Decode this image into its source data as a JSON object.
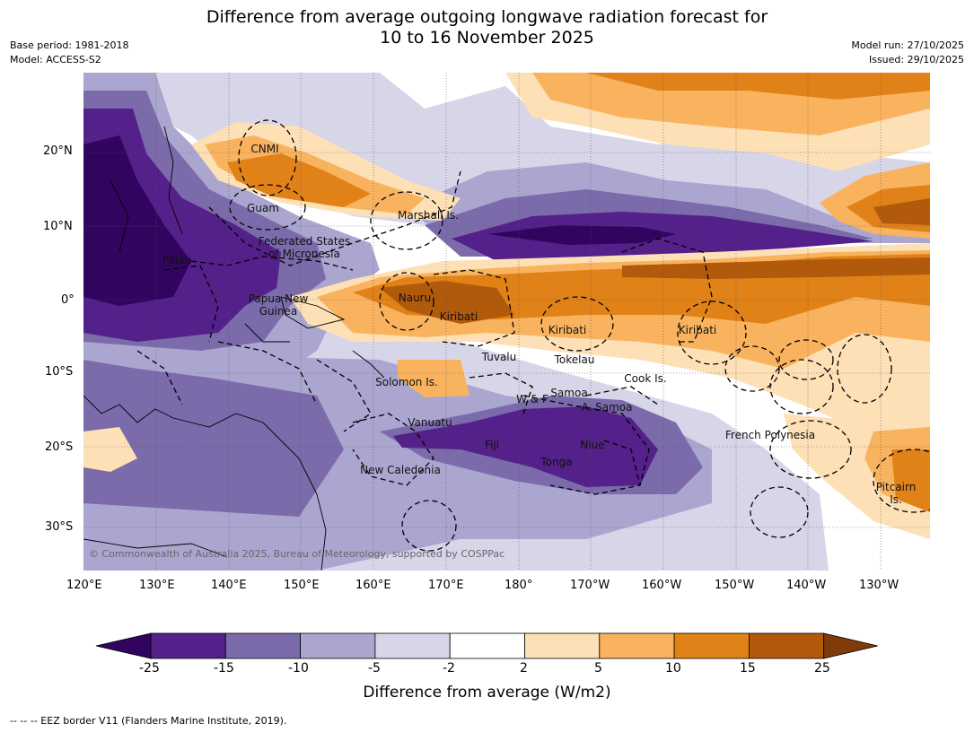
{
  "title": {
    "line1": "Difference from average outgoing longwave radiation forecast for",
    "line2": "10 to 16 November 2025"
  },
  "header": {
    "base_period": "Base period: 1981-2018",
    "model": "Model: ACCESS-S2",
    "model_run": "Model run: 27/10/2025",
    "issued": "Issued: 29/10/2025"
  },
  "map": {
    "lat_labels": [
      "20°N",
      "10°N",
      "0°",
      "10°S",
      "20°S",
      "30°S"
    ],
    "lon_labels": [
      "120°E",
      "130°E",
      "140°E",
      "150°E",
      "160°E",
      "170°E",
      "180°",
      "170°W",
      "160°W",
      "150°W",
      "140°W",
      "130°W"
    ],
    "region_labels": {
      "cnmi": "CNMI",
      "guam": "Guam",
      "marshall": "Marshall Is.",
      "fsm1": "Federated States",
      "fsm2": "of Micronesia",
      "palau": "Palau",
      "png1": "Papua New",
      "png2": "Guinea",
      "nauru": "Nauru",
      "kiribati_w": "Kiribati",
      "kiribati_c": "Kiribati",
      "kiribati_e": "Kiribati",
      "tuvalu": "Tuvalu",
      "tokelau": "Tokelau",
      "cook": "Cook Is.",
      "solomon": "Solomon Is.",
      "wf": "W & F",
      "samoa": "Samoa",
      "asamoa": "A. Samoa",
      "vanuatu": "Vanuatu",
      "fiji": "Fiji",
      "niue": "Niue",
      "tonga": "Tonga",
      "fp": "French Polynesia",
      "newcal": "New Caledonia",
      "pitcairn1": "Pitcairn",
      "pitcairn2": "Is."
    },
    "copyright": "© Commonwealth of Australia 2025, Bureau of Meteorology, supported by COSPPac"
  },
  "colorbar": {
    "ticks": [
      "-25",
      "-15",
      "-10",
      "-5",
      "-2",
      "2",
      "5",
      "10",
      "15",
      "25"
    ],
    "colors": [
      "#31055f",
      "#542089",
      "#7b6bab",
      "#aba6d0",
      "#d7d6e9",
      "#ffffff",
      "#fde0b5",
      "#f9b35f",
      "#e08218",
      "#b25a0b",
      "#7f3b08"
    ],
    "title": "Difference from average (W/m2)"
  },
  "footnote": "--  --  -- EEZ border V11 (Flanders Marine Institute, 2019)."
}
